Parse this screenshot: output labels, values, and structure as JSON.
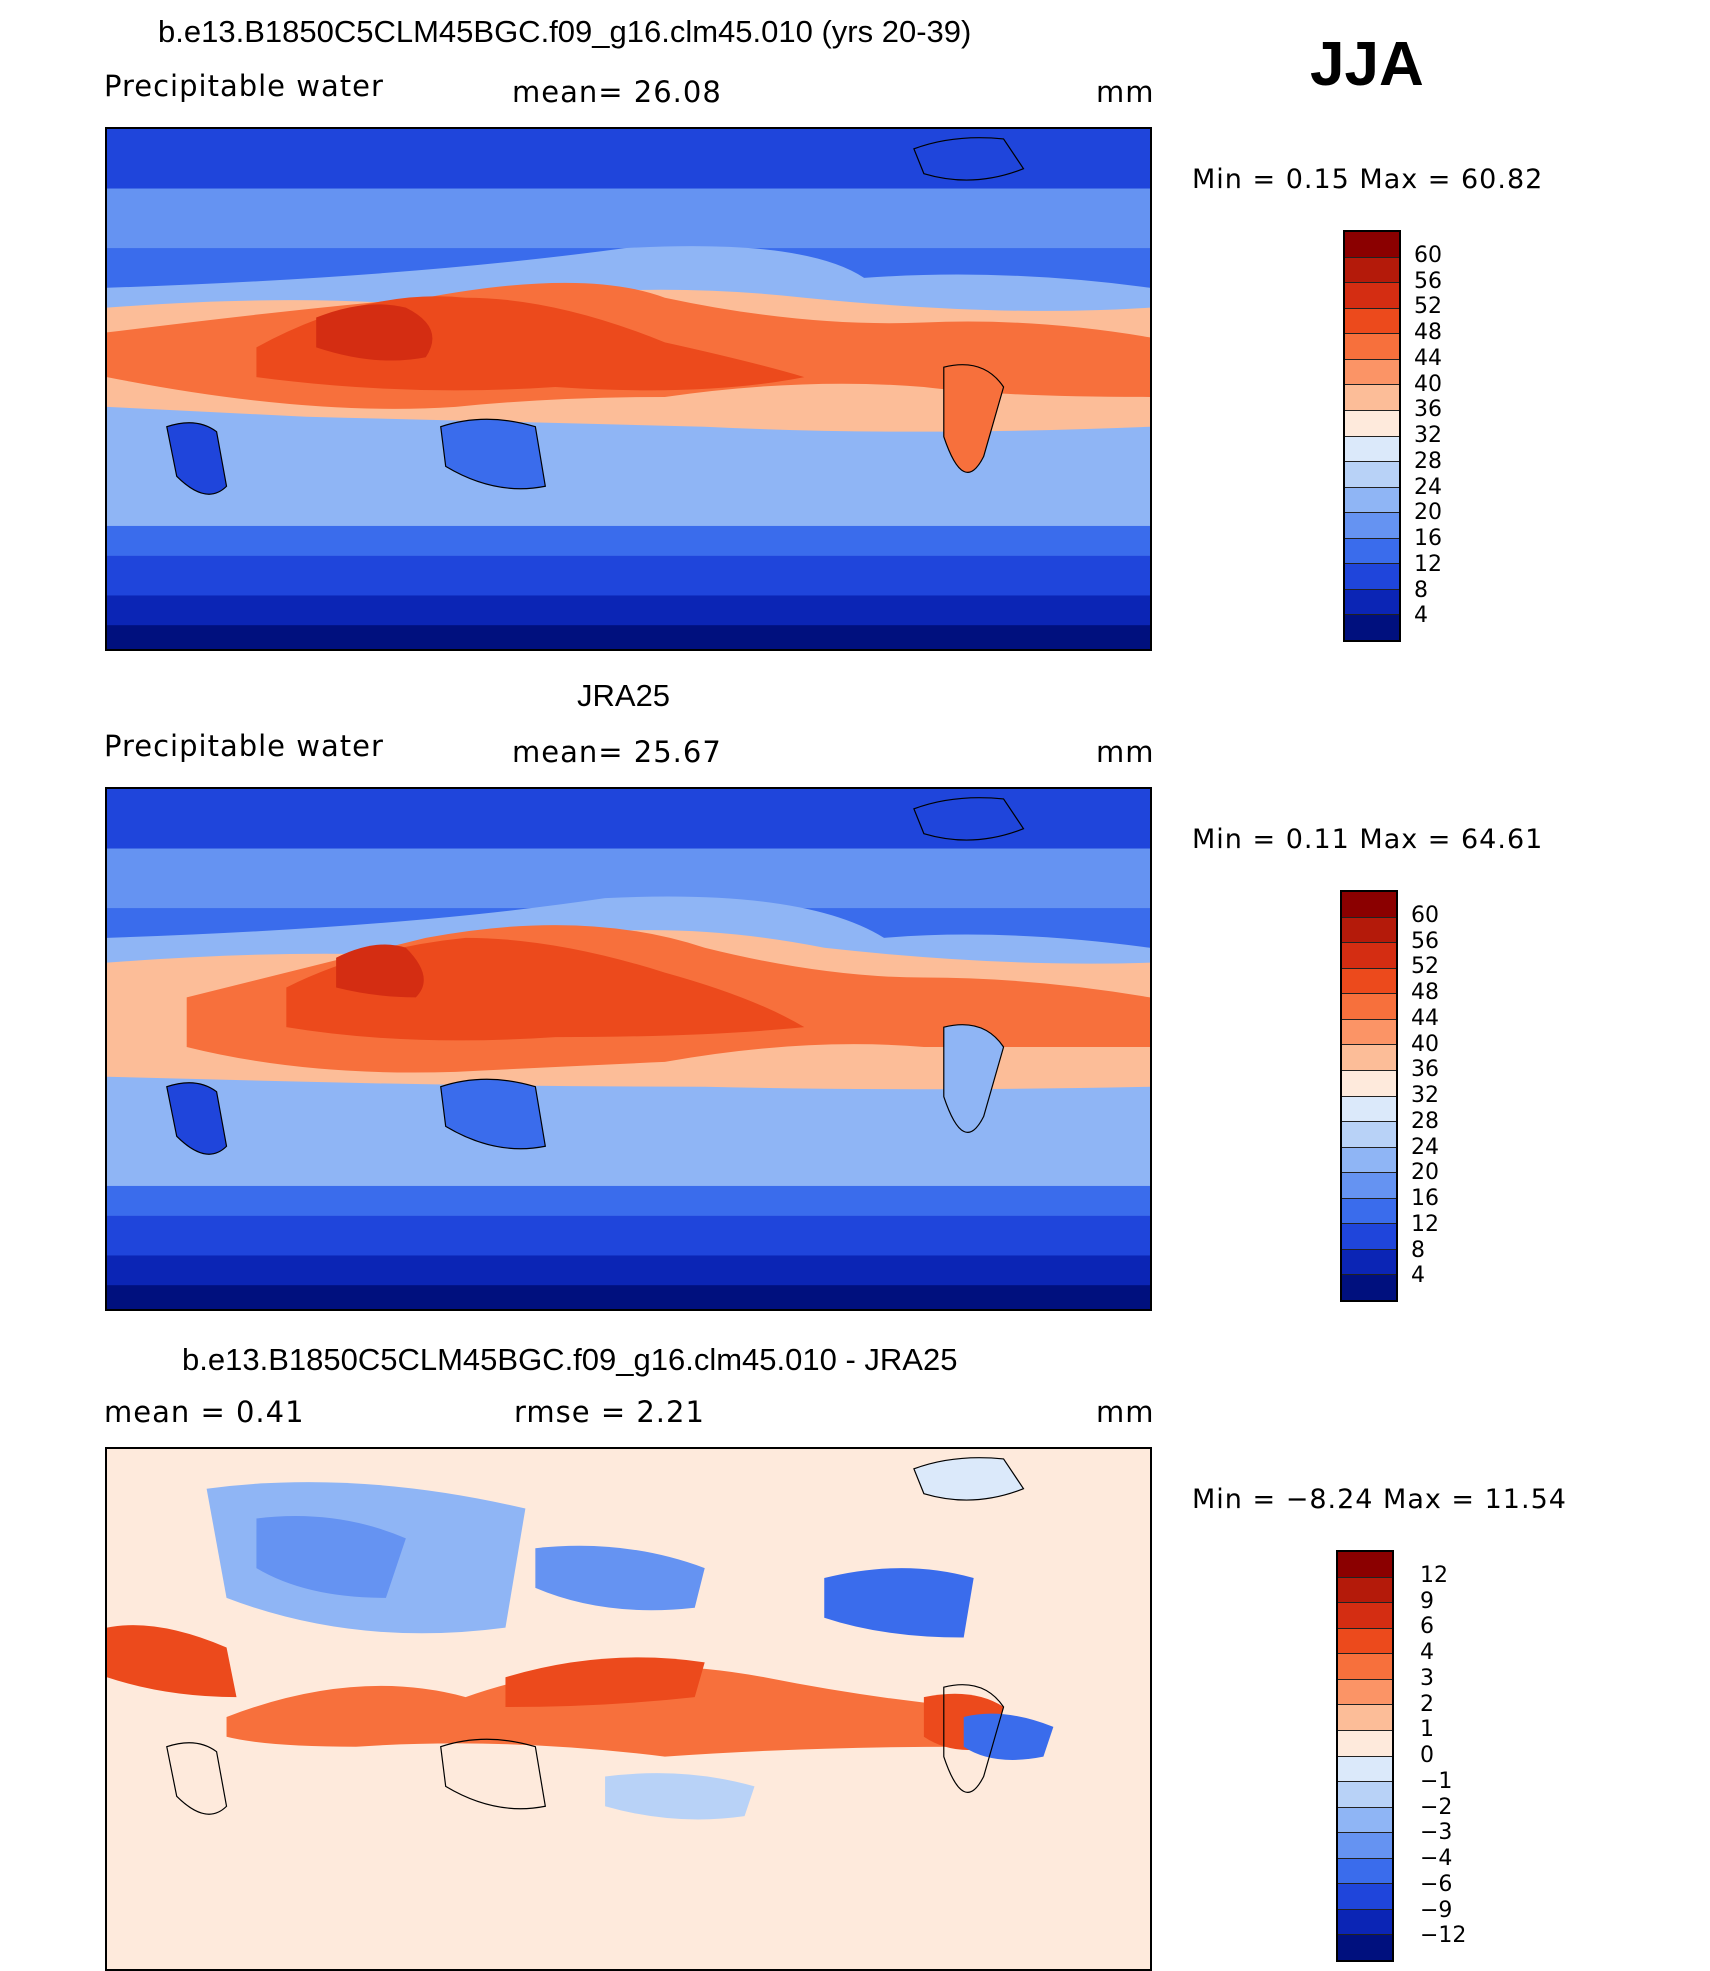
{
  "season": "JJA",
  "panels": [
    {
      "title": "b.e13.B1850C5CLM45BGC.f09_g16.clm45.010 (yrs 20-39)",
      "field": "Precipitable water",
      "stat": "mean=   26.08",
      "units": "mm",
      "minmax": "Min  =     0.15  Max  =    60.82",
      "levels": [
        "60",
        "56",
        "52",
        "48",
        "44",
        "40",
        "36",
        "32",
        "28",
        "24",
        "20",
        "16",
        "12",
        "8",
        "4"
      ]
    },
    {
      "title": "JRA25",
      "field": "Precipitable water",
      "stat": "mean=   25.67",
      "units": "mm",
      "minmax": "Min  =     0.11  Max  =    64.61",
      "levels": [
        "60",
        "56",
        "52",
        "48",
        "44",
        "40",
        "36",
        "32",
        "28",
        "24",
        "20",
        "16",
        "12",
        "8",
        "4"
      ]
    },
    {
      "title": "b.e13.B1850C5CLM45BGC.f09_g16.clm45.010 - JRA25",
      "field": "mean  =      0.41",
      "stat": "rmse  =      2.21",
      "units": "mm",
      "minmax": "Min  =   −8.24  Max  =    11.54",
      "levels": [
        "12",
        "9",
        "6",
        "4",
        "3",
        "2",
        "1",
        "0",
        "−1",
        "−2",
        "−3",
        "−4",
        "−6",
        "−9",
        "−12"
      ]
    }
  ],
  "colors": {
    "seq": [
      "#8b0000",
      "#b41a0a",
      "#d42d12",
      "#ec4a1c",
      "#f7703c",
      "#fb9466",
      "#fcbd98",
      "#feeadc",
      "#dbe9fa",
      "#b8d2f7",
      "#8fb5f5",
      "#6593f2",
      "#3a6cec",
      "#1f45db",
      "#0b25b5",
      "#00107e"
    ],
    "div": [
      "#8b0000",
      "#b41a0a",
      "#d42d12",
      "#ec4a1c",
      "#f7703c",
      "#fb9466",
      "#fcbd98",
      "#feeadc",
      "#dbe9fa",
      "#b8d2f7",
      "#8fb5f5",
      "#6593f2",
      "#3a6cec",
      "#1f45db",
      "#0b25b5",
      "#00107e"
    ]
  }
}
